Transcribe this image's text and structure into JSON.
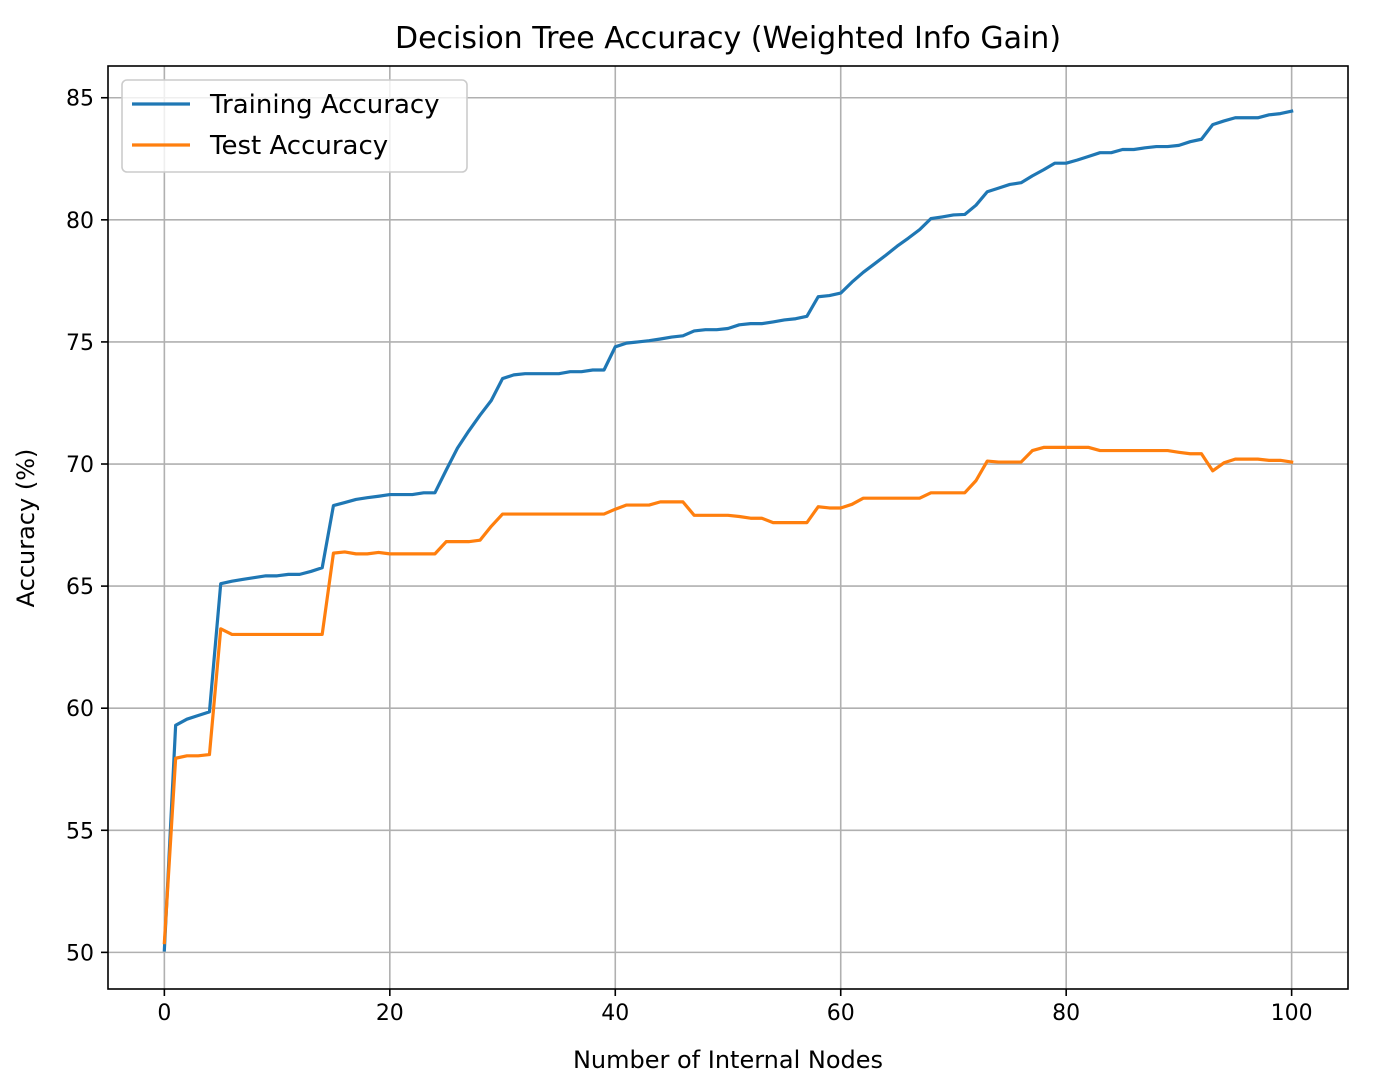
{
  "chart_data": {
    "type": "line",
    "title": "Decision Tree Accuracy (Weighted Info Gain)",
    "xlabel": "Number of Internal Nodes",
    "ylabel": "Accuracy (%)",
    "xlim": [
      -5,
      105
    ],
    "ylim": [
      48.5,
      86.3
    ],
    "xticks": [
      0,
      20,
      40,
      60,
      80,
      100
    ],
    "yticks": [
      50,
      55,
      60,
      65,
      70,
      75,
      80,
      85
    ],
    "grid": true,
    "legend_position": "upper-left",
    "x": [
      0,
      1,
      2,
      3,
      4,
      5,
      6,
      7,
      8,
      9,
      10,
      11,
      12,
      13,
      14,
      15,
      16,
      17,
      18,
      19,
      20,
      21,
      22,
      23,
      24,
      25,
      26,
      27,
      28,
      29,
      30,
      31,
      32,
      33,
      34,
      35,
      36,
      37,
      38,
      39,
      40,
      41,
      42,
      43,
      44,
      45,
      46,
      47,
      48,
      49,
      50,
      51,
      52,
      53,
      54,
      55,
      56,
      57,
      58,
      59,
      60,
      61,
      62,
      63,
      64,
      65,
      66,
      67,
      68,
      69,
      70,
      71,
      72,
      73,
      74,
      75,
      76,
      77,
      78,
      79,
      80,
      81,
      82,
      83,
      84,
      85,
      86,
      87,
      88,
      89,
      90,
      91,
      92,
      93,
      94,
      95,
      96,
      97,
      98,
      99,
      100
    ],
    "series": [
      {
        "name": "Training Accuracy",
        "color": "#1f77b4",
        "values": [
          50.1,
          59.3,
          59.55,
          59.7,
          59.85,
          65.1,
          65.2,
          65.28,
          65.35,
          65.42,
          65.42,
          65.48,
          65.48,
          65.6,
          65.75,
          68.3,
          68.42,
          68.55,
          68.62,
          68.68,
          68.75,
          68.75,
          68.75,
          68.82,
          68.82,
          69.75,
          70.65,
          71.35,
          72.0,
          72.6,
          73.5,
          73.65,
          73.7,
          73.7,
          73.7,
          73.7,
          73.78,
          73.78,
          73.85,
          73.85,
          74.8,
          74.95,
          75.0,
          75.05,
          75.12,
          75.2,
          75.25,
          75.45,
          75.5,
          75.5,
          75.55,
          75.7,
          75.75,
          75.75,
          75.82,
          75.9,
          75.95,
          76.05,
          76.85,
          76.9,
          77.0,
          77.45,
          77.85,
          78.2,
          78.55,
          78.92,
          79.25,
          79.6,
          80.05,
          80.12,
          80.2,
          80.22,
          80.6,
          81.15,
          81.3,
          81.45,
          81.52,
          81.8,
          82.05,
          82.32,
          82.32,
          82.45,
          82.6,
          82.75,
          82.75,
          82.88,
          82.88,
          82.95,
          83.0,
          83.0,
          83.05,
          83.2,
          83.3,
          83.9,
          84.05,
          84.18,
          84.18,
          84.18,
          84.3,
          84.35,
          84.45
        ]
      },
      {
        "name": "Test Accuracy",
        "color": "#ff7f0e",
        "values": [
          50.4,
          57.95,
          58.05,
          58.05,
          58.1,
          63.25,
          63.02,
          63.02,
          63.02,
          63.02,
          63.02,
          63.02,
          63.02,
          63.02,
          63.02,
          66.35,
          66.4,
          66.32,
          66.32,
          66.38,
          66.32,
          66.32,
          66.32,
          66.32,
          66.32,
          66.82,
          66.82,
          66.82,
          66.88,
          67.45,
          67.95,
          67.95,
          67.95,
          67.95,
          67.95,
          67.95,
          67.95,
          67.95,
          67.95,
          67.95,
          68.15,
          68.32,
          68.32,
          68.32,
          68.45,
          68.45,
          68.45,
          67.9,
          67.9,
          67.9,
          67.9,
          67.85,
          67.78,
          67.78,
          67.6,
          67.6,
          67.6,
          67.6,
          68.25,
          68.2,
          68.2,
          68.35,
          68.6,
          68.6,
          68.6,
          68.6,
          68.6,
          68.6,
          68.82,
          68.82,
          68.82,
          68.82,
          69.32,
          70.12,
          70.08,
          70.08,
          70.08,
          70.55,
          70.68,
          70.68,
          70.68,
          70.68,
          70.68,
          70.55,
          70.55,
          70.55,
          70.55,
          70.55,
          70.55,
          70.55,
          70.48,
          70.42,
          70.42,
          69.72,
          70.05,
          70.2,
          70.2,
          70.2,
          70.15,
          70.15,
          70.08
        ]
      }
    ]
  }
}
